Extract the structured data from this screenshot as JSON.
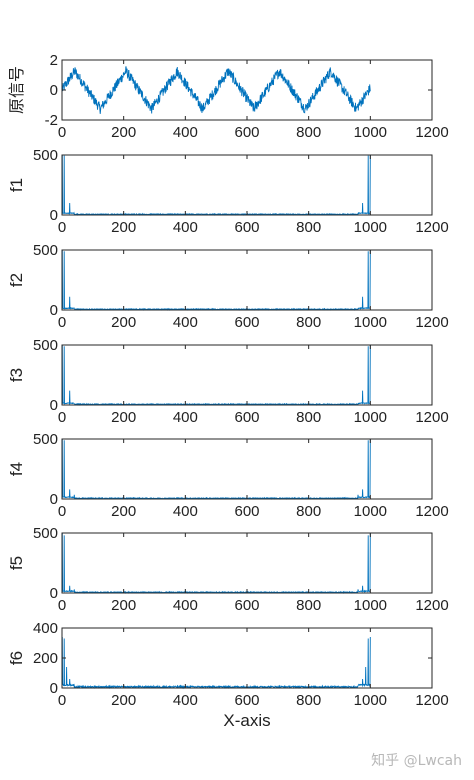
{
  "watermark": "知乎 @Lwcah",
  "colors": {
    "series": "#0072BD",
    "axis": "#262626"
  },
  "chart_data": [
    {
      "type": "line",
      "ylabel": "原信号",
      "xlim": [
        0,
        1200
      ],
      "ylim": [
        -2,
        2
      ],
      "xticks": [
        0,
        200,
        400,
        600,
        800,
        1000,
        1200
      ],
      "yticks": [
        -2,
        0,
        2
      ],
      "x_samples": 1000,
      "signal": {
        "form": "triangle-wave-plus-noise",
        "period": 166,
        "amplitude": 1.4,
        "noise": 0.35
      }
    },
    {
      "type": "line",
      "ylabel": "f1",
      "xlim": [
        0,
        1200
      ],
      "ylim": [
        0,
        500
      ],
      "xticks": [
        0,
        200,
        400,
        600,
        800,
        1000,
        1200
      ],
      "yticks": [
        0,
        500
      ],
      "spikes": [
        {
          "x": 1,
          "y": 500
        },
        {
          "x": 7,
          "y": 495
        },
        {
          "x": 25,
          "y": 100
        },
        {
          "x": 975,
          "y": 100
        },
        {
          "x": 993,
          "y": 495
        },
        {
          "x": 1000,
          "y": 500
        }
      ],
      "baseline": 6
    },
    {
      "type": "line",
      "ylabel": "f2",
      "xlim": [
        0,
        1200
      ],
      "ylim": [
        0,
        500
      ],
      "xticks": [
        0,
        200,
        400,
        600,
        800,
        1000,
        1200
      ],
      "yticks": [
        0,
        500
      ],
      "spikes": [
        {
          "x": 1,
          "y": 500
        },
        {
          "x": 7,
          "y": 490
        },
        {
          "x": 25,
          "y": 110
        },
        {
          "x": 975,
          "y": 110
        },
        {
          "x": 993,
          "y": 490
        },
        {
          "x": 1000,
          "y": 500
        }
      ],
      "baseline": 6
    },
    {
      "type": "line",
      "ylabel": "f3",
      "xlim": [
        0,
        1200
      ],
      "ylim": [
        0,
        500
      ],
      "xticks": [
        0,
        200,
        400,
        600,
        800,
        1000,
        1200
      ],
      "yticks": [
        0,
        500
      ],
      "spikes": [
        {
          "x": 1,
          "y": 500
        },
        {
          "x": 7,
          "y": 490
        },
        {
          "x": 25,
          "y": 120
        },
        {
          "x": 975,
          "y": 120
        },
        {
          "x": 993,
          "y": 490
        },
        {
          "x": 1000,
          "y": 500
        }
      ],
      "baseline": 6
    },
    {
      "type": "line",
      "ylabel": "f4",
      "xlim": [
        0,
        1200
      ],
      "ylim": [
        0,
        500
      ],
      "xticks": [
        0,
        200,
        400,
        600,
        800,
        1000,
        1200
      ],
      "yticks": [
        0,
        500
      ],
      "spikes": [
        {
          "x": 1,
          "y": 500
        },
        {
          "x": 7,
          "y": 490
        },
        {
          "x": 25,
          "y": 80
        },
        {
          "x": 40,
          "y": 35
        },
        {
          "x": 960,
          "y": 35
        },
        {
          "x": 975,
          "y": 80
        },
        {
          "x": 993,
          "y": 490
        },
        {
          "x": 1000,
          "y": 500
        }
      ],
      "baseline": 6
    },
    {
      "type": "line",
      "ylabel": "f5",
      "xlim": [
        0,
        1200
      ],
      "ylim": [
        0,
        500
      ],
      "xticks": [
        0,
        200,
        400,
        600,
        800,
        1000,
        1200
      ],
      "yticks": [
        0,
        500
      ],
      "spikes": [
        {
          "x": 1,
          "y": 500
        },
        {
          "x": 7,
          "y": 480
        },
        {
          "x": 25,
          "y": 60
        },
        {
          "x": 40,
          "y": 30
        },
        {
          "x": 960,
          "y": 30
        },
        {
          "x": 975,
          "y": 60
        },
        {
          "x": 993,
          "y": 480
        },
        {
          "x": 1000,
          "y": 500
        }
      ],
      "baseline": 6
    },
    {
      "type": "line",
      "ylabel": "f6",
      "xlabel": "X-axis",
      "xlim": [
        0,
        1200
      ],
      "ylim": [
        0,
        400
      ],
      "xticks": [
        0,
        200,
        400,
        600,
        800,
        1000,
        1200
      ],
      "yticks": [
        0,
        200,
        400
      ],
      "spikes": [
        {
          "x": 1,
          "y": 340
        },
        {
          "x": 7,
          "y": 330
        },
        {
          "x": 15,
          "y": 140
        },
        {
          "x": 25,
          "y": 60
        },
        {
          "x": 975,
          "y": 60
        },
        {
          "x": 985,
          "y": 140
        },
        {
          "x": 993,
          "y": 330
        },
        {
          "x": 1000,
          "y": 340
        }
      ],
      "baseline": 8
    }
  ]
}
